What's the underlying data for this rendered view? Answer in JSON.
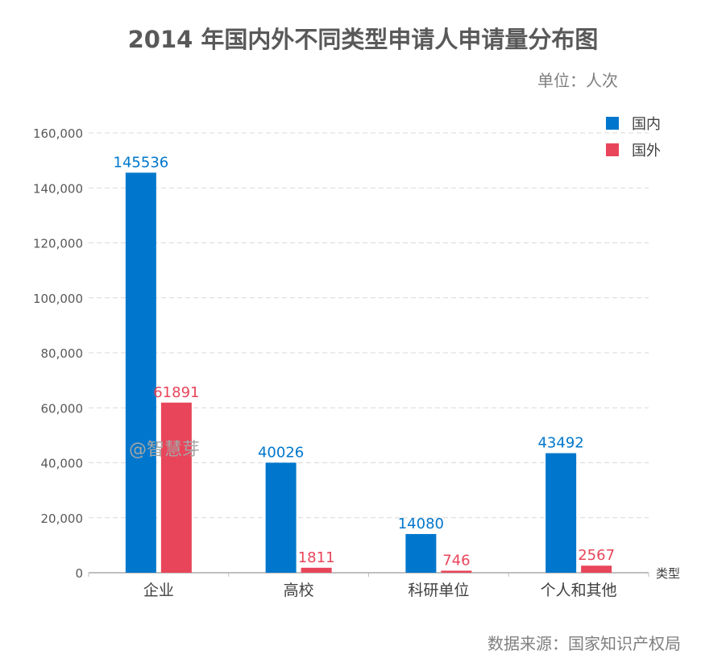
{
  "title": "2014 年国内外不同类型申请人申请量分布图",
  "unit_label": "单位：人次",
  "source": "数据来源：国家知识产权局",
  "watermark": "@智慧芽",
  "colors": {
    "domestic": "#0077cc",
    "foreign": "#e8455a",
    "grid": "#d9d9d9",
    "axis": "#bfbfbf",
    "tick_text": "#595959"
  },
  "chart_data": {
    "type": "bar",
    "title": "2014 年国内外不同类型申请人申请量分布图",
    "xlabel": "类型",
    "ylabel": "",
    "categories": [
      "企业",
      "高校",
      "科研单位",
      "个人和其他"
    ],
    "series": [
      {
        "name": "国内",
        "values": [
          145536,
          40026,
          14080,
          43492
        ]
      },
      {
        "name": "国外",
        "values": [
          61891,
          1811,
          746,
          2567
        ]
      }
    ],
    "ylim": [
      0,
      160000
    ],
    "yticks": [
      0,
      20000,
      40000,
      60000,
      80000,
      100000,
      120000,
      140000,
      160000
    ],
    "ytick_labels": [
      "0",
      "20,000",
      "40,000",
      "60,000",
      "80,000",
      "100,000",
      "120,000",
      "140,000",
      "160,000"
    ],
    "grid": true,
    "legend_position": "top-right"
  }
}
